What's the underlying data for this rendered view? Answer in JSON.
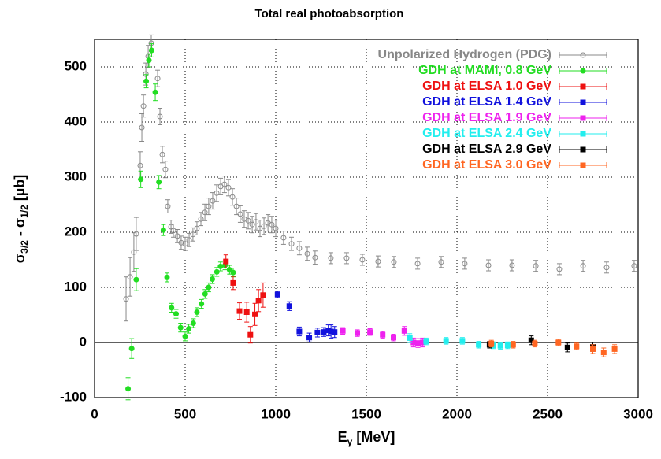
{
  "chart_data": {
    "type": "scatter",
    "title": "Total real photoabsorption",
    "xlabel_parts": [
      "E",
      "γ",
      "[MeV]"
    ],
    "ylabel_parts": [
      "σ",
      "3/2",
      "- σ",
      "1/2",
      "[µb]"
    ],
    "xlim": [
      0,
      3000
    ],
    "ylim": [
      -100,
      550
    ],
    "xticks": [
      0,
      500,
      1000,
      1500,
      2000,
      2500,
      3000
    ],
    "yticks": [
      -100,
      0,
      100,
      200,
      300,
      400,
      500
    ],
    "grid": true,
    "legend": "upper right",
    "series": [
      {
        "name": "Unpolarized Hydrogen (PDG)",
        "color": "#888888",
        "marker": "open-circle",
        "x": [
          174,
          196,
          217,
          230,
          252,
          261,
          270,
          283,
          296,
          313,
          348,
          361,
          374,
          391,
          404,
          422,
          435,
          457,
          478,
          500,
          522,
          543,
          565,
          587,
          609,
          630,
          652,
          674,
          696,
          717,
          739,
          761,
          783,
          804,
          826,
          848,
          870,
          891,
          913,
          935,
          957,
          978,
          1000,
          1043,
          1087,
          1130,
          1174,
          1217,
          1304,
          1391,
          1478,
          1565,
          1652,
          1783,
          1913,
          2043,
          2174,
          2304,
          2435,
          2565,
          2696,
          2826,
          2978
        ],
        "values": [
          79,
          119,
          164,
          197,
          321,
          390,
          429,
          487,
          519,
          543,
          479,
          410,
          341,
          314,
          247,
          210,
          203,
          193,
          181,
          179,
          186,
          196,
          207,
          224,
          236,
          247,
          257,
          271,
          283,
          287,
          281,
          264,
          247,
          233,
          224,
          221,
          214,
          219,
          207,
          211,
          217,
          214,
          207,
          190,
          179,
          171,
          161,
          154,
          153,
          153,
          150,
          147,
          146,
          143,
          146,
          143,
          140,
          140,
          139,
          133,
          139,
          136,
          139
        ],
        "errors": [
          40,
          35,
          35,
          30,
          25,
          25,
          20,
          20,
          20,
          15,
          15,
          15,
          15,
          15,
          12,
          12,
          12,
          12,
          12,
          12,
          12,
          12,
          12,
          12,
          15,
          15,
          15,
          15,
          15,
          15,
          15,
          15,
          15,
          15,
          15,
          15,
          15,
          15,
          15,
          15,
          15,
          15,
          15,
          12,
          12,
          12,
          12,
          12,
          10,
          10,
          10,
          10,
          10,
          10,
          10,
          10,
          10,
          10,
          10,
          10,
          10,
          10,
          10
        ]
      },
      {
        "name": "GDH at MAMI, 0.8 GeV",
        "color": "#22dd22",
        "marker": "circle",
        "x": [
          185,
          205,
          230,
          255,
          285,
          300,
          315,
          335,
          355,
          380,
          400,
          425,
          450,
          475,
          500,
          520,
          545,
          565,
          590,
          610,
          630,
          650,
          675,
          695,
          720,
          745,
          765
        ],
        "values": [
          -84,
          -11,
          114,
          296,
          474,
          512,
          530,
          454,
          291,
          204,
          118,
          63,
          52,
          27,
          11,
          25,
          35,
          55,
          70,
          88,
          100,
          115,
          128,
          138,
          140,
          132,
          127
        ],
        "errors": [
          20,
          18,
          20,
          15,
          12,
          12,
          12,
          15,
          12,
          10,
          8,
          8,
          8,
          8,
          8,
          8,
          8,
          8,
          8,
          8,
          8,
          8,
          8,
          8,
          8,
          8,
          8
        ]
      },
      {
        "name": "GDH at ELSA 1.0 GeV",
        "color": "#ee1111",
        "marker": "square",
        "x": [
          725,
          765,
          800,
          840,
          860,
          885,
          905,
          930
        ],
        "values": [
          147,
          108,
          57,
          55,
          14,
          51,
          76,
          86
        ],
        "errors": [
          12,
          12,
          15,
          18,
          15,
          20,
          20,
          22
        ]
      },
      {
        "name": "GDH at ELSA 1.4 GeV",
        "color": "#1111dd",
        "marker": "square",
        "x": [
          1010,
          1075,
          1130,
          1185,
          1230,
          1265,
          1290,
          1305,
          1325
        ],
        "values": [
          87,
          66,
          20,
          9,
          18,
          19,
          22,
          20,
          19
        ],
        "errors": [
          6,
          8,
          8,
          8,
          8,
          8,
          10,
          12,
          10
        ]
      },
      {
        "name": "GDH at ELSA 1.9 GeV",
        "color": "#ee22ee",
        "marker": "square",
        "x": [
          1370,
          1450,
          1520,
          1590,
          1650,
          1710,
          1760,
          1785,
          1810
        ],
        "values": [
          21,
          17,
          19,
          14,
          9,
          21,
          0,
          -1,
          0
        ],
        "errors": [
          6,
          6,
          6,
          6,
          6,
          8,
          8,
          8,
          8
        ]
      },
      {
        "name": "GDH at ELSA 2.4 GeV",
        "color": "#22eeee",
        "marker": "square",
        "x": [
          1740,
          1830,
          1940,
          2030,
          2120,
          2200,
          2240,
          2280
        ],
        "values": [
          8,
          2,
          3,
          3,
          -4,
          -5,
          -6,
          -5
        ],
        "errors": [
          8,
          6,
          6,
          6,
          6,
          6,
          6,
          6
        ]
      },
      {
        "name": "GDH at ELSA 2.9 GeV",
        "color": "#000000",
        "marker": "square",
        "x": [
          2180,
          2410,
          2610,
          2750
        ],
        "values": [
          -4,
          4,
          -9,
          -8
        ],
        "errors": [
          6,
          8,
          8,
          8
        ]
      },
      {
        "name": "GDH at ELSA 3.0 GeV",
        "color": "#ff6622",
        "marker": "square",
        "x": [
          2190,
          2310,
          2430,
          2560,
          2660,
          2750,
          2810,
          2870
        ],
        "values": [
          -2,
          -4,
          -2,
          0,
          -7,
          -12,
          -18,
          -12
        ],
        "errors": [
          6,
          6,
          6,
          6,
          6,
          8,
          8,
          8
        ]
      }
    ]
  }
}
